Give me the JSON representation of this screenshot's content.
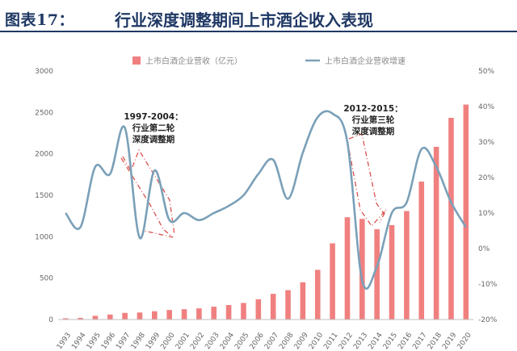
{
  "header": {
    "label": "图表17：",
    "title": "行业深度调整期间上市酒企收入表现"
  },
  "chart_data": {
    "type": "bar+line",
    "title": "行业深度调整期间上市酒企收入表现",
    "categories": [
      "1993",
      "1994",
      "1995",
      "1996",
      "1997",
      "1998",
      "1999",
      "2000",
      "2001",
      "2002",
      "2003",
      "2004",
      "2005",
      "2006",
      "2007",
      "2008",
      "2009",
      "2010",
      "2011",
      "2012",
      "2013",
      "2014",
      "2015",
      "2016",
      "2017",
      "2018",
      "2019",
      "2020"
    ],
    "series": [
      {
        "name": "上市白酒企业营收（亿元）",
        "type": "bar",
        "axis": "left",
        "color": "#f08080",
        "values": [
          15,
          20,
          45,
          60,
          80,
          85,
          100,
          115,
          125,
          135,
          155,
          175,
          200,
          245,
          310,
          355,
          450,
          600,
          920,
          1235,
          1215,
          1090,
          1140,
          1310,
          1665,
          2085,
          2435,
          2595
        ]
      },
      {
        "name": "上市白酒企业营收增速",
        "type": "line",
        "axis": "right",
        "color": "#7aa0b8",
        "values": [
          10,
          6,
          23,
          21,
          34,
          3,
          22,
          8,
          10,
          8,
          10,
          12,
          15,
          21,
          25,
          14,
          27,
          37,
          38,
          30,
          -9,
          -5,
          10,
          13,
          28,
          23,
          13,
          6
        ]
      }
    ],
    "y_left": {
      "min": 0,
      "max": 3000,
      "ticks": [
        "0",
        "500",
        "1000",
        "1500",
        "2000",
        "2500",
        "3000"
      ]
    },
    "y_right": {
      "min": -20,
      "max": 50,
      "ticks": [
        "-20%",
        "-10%",
        "0%",
        "10%",
        "20%",
        "30%",
        "40%",
        "50%"
      ]
    },
    "annotations": [
      {
        "lines": [
          "1997-2004：",
          "行业第二轮",
          "深度调整期"
        ]
      },
      {
        "lines": [
          "2012-2015：",
          "行业第三轮",
          "深度调整期"
        ]
      }
    ],
    "trend_color": "#d9534f"
  }
}
